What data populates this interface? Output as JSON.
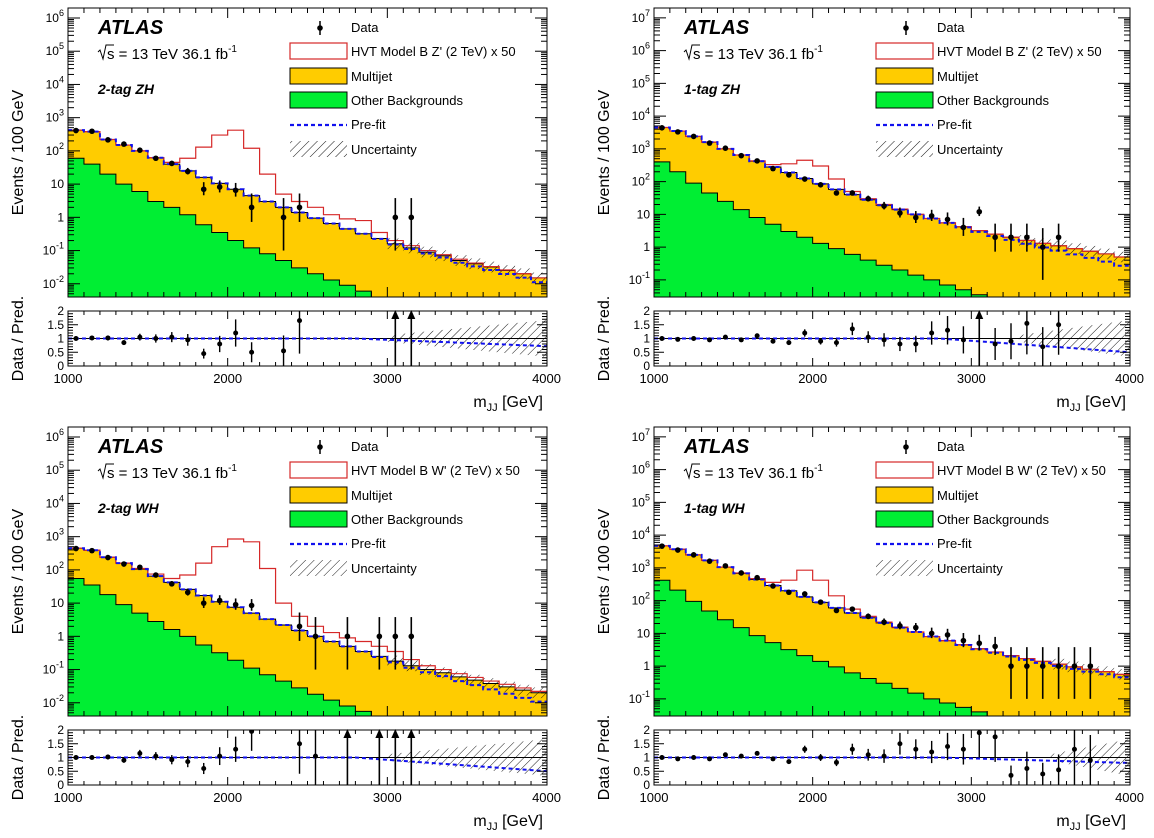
{
  "figure": {
    "experiment": "ATLAS",
    "energy": "13 TeV",
    "lumi_main": "36.1 fb",
    "lumi_exp": "-1",
    "sqrt_s_label": "s"
  },
  "legend": {
    "data": "Data",
    "multijet": "Multijet",
    "other": "Other Backgrounds",
    "prefit": "Pre-fit",
    "uncertainty": "Uncertainty"
  },
  "axis_text": {
    "ylabel_main": "Events / 100 GeV",
    "ylabel_ratio": "Data / Pred.",
    "xlabel_main": "m",
    "xlabel_sub": "JJ",
    "xlabel_unit": " [GeV]"
  },
  "colors": {
    "multijet": "#ffcc00",
    "other": "#00ee33",
    "signal": "#d62828",
    "prefit": "#1111ee",
    "data": "#000000"
  },
  "chart_data": [
    {
      "type": "bar",
      "category_label": "2-tag ZH",
      "signal_label": "HVT Model B Z' (2 TeV) x 50",
      "xlim": [
        1000,
        4000
      ],
      "ylim": [
        0.004,
        2000000
      ],
      "ylog": true,
      "yticks": [
        "10^6",
        "10^5",
        "10^4",
        "10^3",
        "10^2",
        "10",
        "1",
        "10^-1",
        "10^-2"
      ],
      "ratio_ylim": [
        0,
        2
      ],
      "ratio_yticks": [
        "0",
        "0.5",
        "1",
        "1.5",
        "2"
      ],
      "xticks": [
        "1000",
        "2000",
        "3000",
        "4000"
      ],
      "bin_edges": [
        1000,
        1100,
        1200,
        1300,
        1400,
        1500,
        1600,
        1700,
        1800,
        1900,
        2000,
        2100,
        2200,
        2300,
        2400,
        2500,
        2600,
        2700,
        2800,
        2900,
        3000,
        3100,
        3200,
        3300,
        3400,
        3500,
        3600,
        3700,
        3800,
        3900,
        4000
      ],
      "total_bkg": [
        420,
        380,
        220,
        150,
        100,
        62,
        40,
        25,
        16,
        10.5,
        7,
        4.5,
        3,
        2,
        1.4,
        0.95,
        0.65,
        0.45,
        0.32,
        0.23,
        0.16,
        0.12,
        0.09,
        0.07,
        0.05,
        0.04,
        0.032,
        0.025,
        0.02,
        0.015
      ],
      "other_bkg": [
        60,
        40,
        20,
        10,
        6,
        3,
        2,
        1.2,
        0.6,
        0.35,
        0.2,
        0.12,
        0.08,
        0.05,
        0.03,
        0.02,
        0.013,
        0.009,
        0.006,
        0.004,
        0.003,
        0.002,
        0.0015,
        0.001,
        0.0008,
        0.0006,
        0.0005,
        0.0004,
        0.0003,
        0.0002
      ],
      "signal_plus_bkg": [
        420,
        380,
        220,
        150,
        100,
        62,
        45,
        60,
        130,
        300,
        420,
        120,
        20,
        5,
        3,
        2,
        1.2,
        0.9,
        0.8,
        0.35,
        0.2,
        0.14,
        0.1,
        0.075,
        0.055,
        0.042,
        0.033,
        0.026,
        0.02,
        0.015
      ],
      "data_x": [
        1050,
        1150,
        1250,
        1350,
        1450,
        1550,
        1650,
        1750,
        1850,
        1950,
        2050,
        2150,
        2350,
        2450,
        3050,
        3150
      ],
      "data_y": [
        410,
        390,
        215,
        160,
        105,
        60,
        42,
        24,
        7,
        8.2,
        6.5,
        2,
        1,
        2,
        1,
        1
      ],
      "ratio_y": [
        1.0,
        1.02,
        1.02,
        0.85,
        1.05,
        1.0,
        1.05,
        0.95,
        0.45,
        0.8,
        1.2,
        0.5,
        0.55,
        1.65,
        2.5,
        2.5
      ],
      "prefit_ratio_end": 0.72,
      "unc_start": 3000
    },
    {
      "type": "bar",
      "category_label": "1-tag ZH",
      "signal_label": "HVT Model B Z' (2 TeV) x 50",
      "xlim": [
        1000,
        4000
      ],
      "ylim": [
        0.03,
        20000000
      ],
      "ylog": true,
      "yticks": [
        "10^7",
        "10^6",
        "10^5",
        "10^4",
        "10^3",
        "10^2",
        "10",
        "1",
        "10^-1"
      ],
      "ratio_ylim": [
        0,
        2
      ],
      "ratio_yticks": [
        "0",
        "0.5",
        "1",
        "1.5",
        "2"
      ],
      "xticks": [
        "1000",
        "2000",
        "3000",
        "4000"
      ],
      "bin_edges": [
        1000,
        1100,
        1200,
        1300,
        1400,
        1500,
        1600,
        1700,
        1800,
        1900,
        2000,
        2100,
        2200,
        2300,
        2400,
        2500,
        2600,
        2700,
        2800,
        2900,
        3000,
        3100,
        3200,
        3300,
        3400,
        3500,
        3600,
        3700,
        3800,
        3900,
        4000
      ],
      "total_bkg": [
        4500,
        3500,
        2400,
        1600,
        1000,
        650,
        420,
        280,
        190,
        125,
        85,
        58,
        40,
        28,
        19,
        14,
        10,
        7.5,
        5.5,
        4.2,
        3.2,
        2.5,
        2,
        1.6,
        1.3,
        1.1,
        0.9,
        0.75,
        0.62,
        0.5
      ],
      "other_bkg": [
        400,
        200,
        90,
        45,
        25,
        14,
        8,
        5,
        3,
        2,
        1.3,
        0.9,
        0.6,
        0.4,
        0.28,
        0.2,
        0.14,
        0.1,
        0.07,
        0.05,
        0.035,
        0.025,
        0.018,
        0.013,
        0.01,
        0.008,
        0.006,
        0.005,
        0.004,
        0.003
      ],
      "signal_plus_bkg": [
        4500,
        3500,
        2400,
        1600,
        1000,
        650,
        430,
        330,
        350,
        450,
        300,
        120,
        50,
        30,
        20,
        14.5,
        10,
        7.5,
        5.5,
        4.2,
        3.2,
        2.5,
        2,
        1.6,
        1.3,
        1.1,
        0.9,
        0.75,
        0.62,
        0.5
      ],
      "data_x": [
        1050,
        1150,
        1250,
        1350,
        1450,
        1550,
        1650,
        1750,
        1850,
        1950,
        2050,
        2150,
        2250,
        2350,
        2450,
        2550,
        2650,
        2750,
        2850,
        2950,
        3050,
        3150,
        3250,
        3350,
        3450,
        3550
      ],
      "data_y": [
        4400,
        3300,
        2400,
        1500,
        1050,
        620,
        430,
        250,
        160,
        120,
        80,
        45,
        45,
        30,
        18,
        11,
        8,
        9,
        7,
        4,
        12,
        2,
        2,
        2,
        1,
        2
      ],
      "ratio_y": [
        1.0,
        0.97,
        1.0,
        0.95,
        1.05,
        0.95,
        1.1,
        0.9,
        0.85,
        1.2,
        0.9,
        0.85,
        1.35,
        1.05,
        0.95,
        0.8,
        0.8,
        1.2,
        1.3,
        0.95,
        2.5,
        0.8,
        0.9,
        1.55,
        0.7,
        1.5
      ],
      "prefit_ratio_end": 0.5,
      "unc_start": 3300
    },
    {
      "type": "bar",
      "category_label": "2-tag WH",
      "signal_label": "HVT Model B W' (2 TeV) x 50",
      "xlim": [
        1000,
        4000
      ],
      "ylim": [
        0.004,
        2000000
      ],
      "ylog": true,
      "yticks": [
        "10^6",
        "10^5",
        "10^4",
        "10^3",
        "10^2",
        "10",
        "1",
        "10^-1",
        "10^-2"
      ],
      "ratio_ylim": [
        0,
        2
      ],
      "ratio_yticks": [
        "0",
        "0.5",
        "1",
        "1.5",
        "2"
      ],
      "xticks": [
        "1000",
        "2000",
        "3000",
        "4000"
      ],
      "bin_edges": [
        1000,
        1100,
        1200,
        1300,
        1400,
        1500,
        1600,
        1700,
        1800,
        1900,
        2000,
        2100,
        2200,
        2300,
        2400,
        2500,
        2600,
        2700,
        2800,
        2900,
        3000,
        3100,
        3200,
        3300,
        3400,
        3500,
        3600,
        3700,
        3800,
        3900,
        4000
      ],
      "total_bkg": [
        450,
        390,
        240,
        160,
        105,
        65,
        42,
        26,
        17,
        11,
        7.5,
        5,
        3.3,
        2.2,
        1.5,
        1,
        0.7,
        0.5,
        0.35,
        0.25,
        0.18,
        0.13,
        0.1,
        0.08,
        0.06,
        0.048,
        0.038,
        0.03,
        0.024,
        0.02
      ],
      "other_bkg": [
        55,
        35,
        18,
        9,
        5,
        2.8,
        1.6,
        1,
        0.55,
        0.32,
        0.19,
        0.11,
        0.07,
        0.045,
        0.028,
        0.018,
        0.012,
        0.008,
        0.0055,
        0.004,
        0.0028,
        0.002,
        0.0015,
        0.001,
        0.0008,
        0.0006,
        0.0005,
        0.0004,
        0.0003,
        0.0002
      ],
      "signal_plus_bkg": [
        450,
        390,
        240,
        160,
        110,
        75,
        55,
        70,
        160,
        500,
        850,
        700,
        110,
        10,
        4,
        2,
        1.3,
        0.9,
        0.7,
        0.5,
        0.35,
        0.2,
        0.13,
        0.1,
        0.075,
        0.058,
        0.045,
        0.036,
        0.028,
        0.022
      ],
      "data_x": [
        1050,
        1150,
        1250,
        1350,
        1450,
        1550,
        1650,
        1750,
        1850,
        1950,
        2050,
        2150,
        2450,
        2550,
        2750,
        2950,
        3050,
        3150
      ],
      "data_y": [
        440,
        380,
        235,
        150,
        120,
        70,
        38,
        21,
        10,
        12,
        9,
        8.5,
        2,
        1,
        1,
        1,
        1,
        1
      ],
      "ratio_y": [
        1.0,
        1.0,
        1.02,
        0.9,
        1.15,
        1.05,
        0.92,
        0.85,
        0.6,
        1.05,
        1.3,
        1.95,
        1.5,
        1.05,
        2.5,
        2.5,
        2.5,
        2.5
      ],
      "prefit_ratio_end": 0.5,
      "unc_start": 3000
    },
    {
      "type": "bar",
      "category_label": "1-tag WH",
      "signal_label": "HVT Model B W' (2 TeV) x 50",
      "xlim": [
        1000,
        4000
      ],
      "ylim": [
        0.03,
        20000000
      ],
      "ylog": true,
      "yticks": [
        "10^7",
        "10^6",
        "10^5",
        "10^4",
        "10^3",
        "10^2",
        "10",
        "1",
        "10^-1"
      ],
      "ratio_ylim": [
        0,
        2
      ],
      "ratio_yticks": [
        "0",
        "0.5",
        "1",
        "1.5",
        "2"
      ],
      "xticks": [
        "1000",
        "2000",
        "3000",
        "4000"
      ],
      "bin_edges": [
        1000,
        1100,
        1200,
        1300,
        1400,
        1500,
        1600,
        1700,
        1800,
        1900,
        2000,
        2100,
        2200,
        2300,
        2400,
        2500,
        2600,
        2700,
        2800,
        2900,
        3000,
        3100,
        3200,
        3300,
        3400,
        3500,
        3600,
        3700,
        3800,
        3900,
        4000
      ],
      "total_bkg": [
        4700,
        3700,
        2500,
        1700,
        1050,
        680,
        440,
        290,
        200,
        130,
        88,
        60,
        42,
        30,
        21,
        15,
        11,
        8,
        6,
        4.5,
        3.4,
        2.7,
        2.1,
        1.7,
        1.4,
        1.15,
        0.95,
        0.8,
        0.68,
        0.56
      ],
      "other_bkg": [
        420,
        210,
        95,
        48,
        26,
        15,
        8.5,
        5.2,
        3.2,
        2.1,
        1.4,
        0.95,
        0.62,
        0.42,
        0.3,
        0.21,
        0.15,
        0.1,
        0.075,
        0.055,
        0.04,
        0.028,
        0.02,
        0.015,
        0.011,
        0.008,
        0.006,
        0.005,
        0.004,
        0.003
      ],
      "signal_plus_bkg": [
        4700,
        3700,
        2500,
        1700,
        1060,
        700,
        470,
        360,
        420,
        850,
        420,
        140,
        55,
        33,
        22,
        15.5,
        11,
        8,
        6,
        4.5,
        3.4,
        2.7,
        2.1,
        1.7,
        1.4,
        1.15,
        0.95,
        0.8,
        0.68,
        0.56
      ],
      "data_x": [
        1050,
        1150,
        1250,
        1350,
        1450,
        1550,
        1650,
        1750,
        1850,
        1950,
        2050,
        2150,
        2250,
        2350,
        2450,
        2550,
        2650,
        2750,
        2850,
        2950,
        3050,
        3150,
        3250,
        3350,
        3450,
        3550,
        3650,
        3750
      ],
      "data_y": [
        4600,
        3500,
        2500,
        1600,
        1150,
        700,
        500,
        280,
        180,
        160,
        90,
        50,
        55,
        33,
        22,
        17,
        15,
        10,
        9,
        6,
        5,
        4,
        1,
        1,
        1,
        1,
        1,
        1
      ],
      "ratio_y": [
        1.0,
        0.95,
        1.0,
        0.95,
        1.1,
        1.05,
        1.15,
        0.95,
        0.85,
        1.3,
        1.0,
        0.82,
        1.3,
        1.1,
        1.05,
        1.5,
        1.3,
        1.2,
        1.4,
        1.3,
        1.9,
        1.75,
        0.35,
        0.6,
        0.4,
        0.55,
        1.3,
        0.9
      ],
      "prefit_ratio_end": 0.8,
      "unc_start": 3500
    }
  ]
}
